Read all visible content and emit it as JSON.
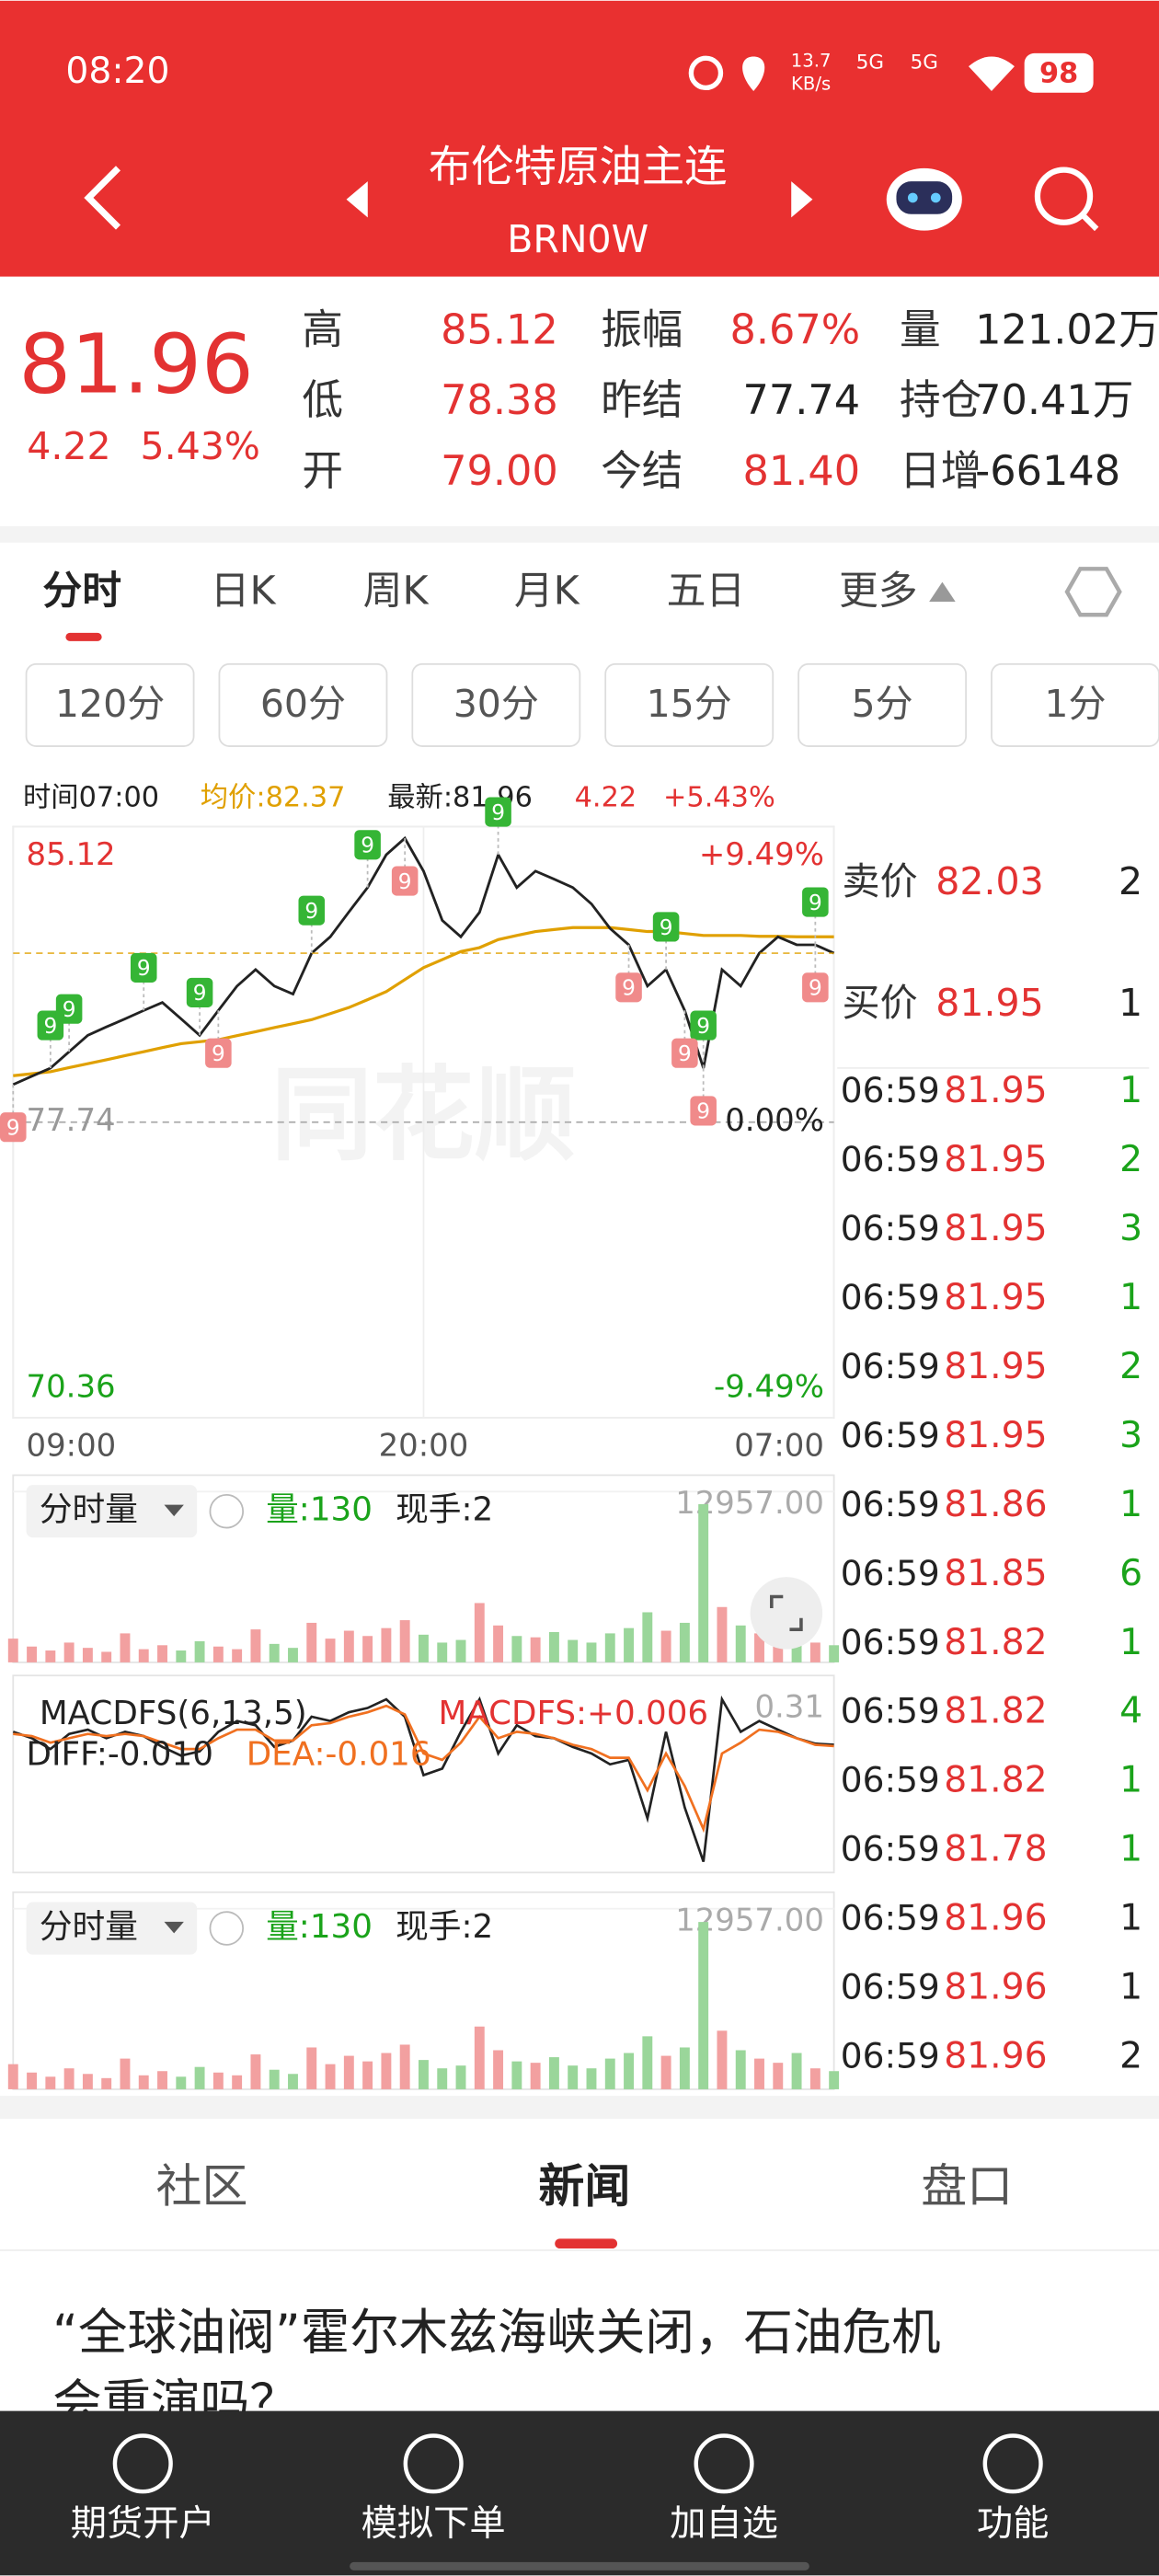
{
  "status_bar": {
    "time": "08:20",
    "speed": "13.7",
    "speed_unit": "KB/s",
    "net1": "5G",
    "net2": "5G",
    "battery": "98"
  },
  "header": {
    "title": "布伦特原油主连",
    "code": "BRN0W"
  },
  "quote": {
    "price": "81.96",
    "change": "4.22",
    "change_pct": "5.43%",
    "stats": [
      [
        {
          "label": "高",
          "value": "85.12"
        },
        {
          "label": "振幅",
          "value": "8.67%"
        },
        {
          "label": "量",
          "value": "121.02万"
        }
      ],
      [
        {
          "label": "低",
          "value": "78.38"
        },
        {
          "label": "昨结",
          "value": "77.74"
        },
        {
          "label": "持仓",
          "value": "70.41万"
        }
      ],
      [
        {
          "label": "开",
          "value": "79.00"
        },
        {
          "label": "今结",
          "value": "81.40"
        },
        {
          "label": "日增",
          "value": "-66148"
        }
      ]
    ]
  },
  "tabs": [
    "分时",
    "日K",
    "周K",
    "月K",
    "五日",
    "更多"
  ],
  "intervals": [
    "120分",
    "60分",
    "30分",
    "15分",
    "5分",
    "1分"
  ],
  "info": {
    "time": "时间07:00",
    "avg": "均价:82.37",
    "latest": "最新:81.96",
    "change": "4.22",
    "change_pct": "+5.43%"
  },
  "watermark": "同花顺",
  "chart_data": {
    "type": "line",
    "xlim": [
      0,
      1320
    ],
    "xticks": [
      {
        "value": 0,
        "label": "09:00"
      },
      {
        "value": 660,
        "label": "20:00"
      },
      {
        "value": 1320,
        "label": "07:00"
      }
    ],
    "ylim": [
      70.36,
      85.12
    ],
    "yticks": [
      85.12,
      77.74,
      70.36
    ],
    "y2lim": [
      -9.49,
      9.49
    ],
    "y2ticks": [
      {
        "value": 9.49,
        "label": "+9.49%"
      },
      {
        "value": 0,
        "label": "0.00%"
      },
      {
        "value": -9.49,
        "label": "-9.49%"
      }
    ],
    "x": [
      0,
      30,
      60,
      90,
      120,
      150,
      180,
      210,
      240,
      270,
      300,
      330,
      360,
      390,
      420,
      450,
      480,
      510,
      540,
      570,
      600,
      630,
      660,
      690,
      720,
      750,
      780,
      810,
      840,
      870,
      900,
      930,
      960,
      990,
      1020,
      1050,
      1080,
      1110,
      1140,
      1170,
      1200,
      1230,
      1260,
      1290,
      1320
    ],
    "series": [
      {
        "color": "#222222",
        "values": [
          78.68,
          78.89,
          79.09,
          79.5,
          79.91,
          80.12,
          80.32,
          80.53,
          80.73,
          80.32,
          79.91,
          80.53,
          81.14,
          81.55,
          81.14,
          80.94,
          81.96,
          82.37,
          82.99,
          83.6,
          84.42,
          84.83,
          84.01,
          82.78,
          82.37,
          82.98,
          84.42,
          83.6,
          84.01,
          83.81,
          83.6,
          83.19,
          82.58,
          82.17,
          81.14,
          81.55,
          80.53,
          79.09,
          81.55,
          81.14,
          81.96,
          82.37,
          82.17,
          82.17,
          81.96
        ]
      },
      {
        "color": "#e0a000",
        "values": [
          78.9,
          78.95,
          79.0,
          79.1,
          79.2,
          79.3,
          79.4,
          79.5,
          79.6,
          79.7,
          79.75,
          79.8,
          79.9,
          80.0,
          80.1,
          80.2,
          80.3,
          80.45,
          80.6,
          80.8,
          81.0,
          81.3,
          81.6,
          81.8,
          82.0,
          82.1,
          82.3,
          82.4,
          82.5,
          82.55,
          82.6,
          82.6,
          82.6,
          82.55,
          82.5,
          82.5,
          82.45,
          82.4,
          82.4,
          82.4,
          82.38,
          82.38,
          82.37,
          82.37,
          82.37
        ]
      }
    ],
    "signals": [
      {
        "x": 60,
        "label": "9",
        "color": "#35b535"
      },
      {
        "x": 90,
        "label": "9",
        "color": "#35b535"
      },
      {
        "x": 210,
        "label": "9",
        "color": "#35b535"
      },
      {
        "x": 300,
        "label": "9",
        "color": "#35b535"
      },
      {
        "x": 480,
        "label": "9",
        "color": "#35b535"
      },
      {
        "x": 570,
        "label": "9",
        "color": "#35b535"
      },
      {
        "x": 780,
        "label": "9",
        "color": "#35b535"
      },
      {
        "x": 1050,
        "label": "9",
        "color": "#35b535"
      },
      {
        "x": 1110,
        "label": "9",
        "color": "#35b535"
      },
      {
        "x": 1290,
        "label": "9",
        "color": "#35b535"
      },
      {
        "x": 0,
        "label": "9",
        "color": "#f08a8a"
      },
      {
        "x": 330,
        "label": "9",
        "color": "#f08a8a"
      },
      {
        "x": 630,
        "label": "9",
        "color": "#f08a8a"
      },
      {
        "x": 990,
        "label": "9",
        "color": "#f08a8a"
      },
      {
        "x": 1080,
        "label": "9",
        "color": "#f08a8a"
      },
      {
        "x": 1110,
        "label": "9",
        "color": "#f08a8a"
      },
      {
        "x": 1290,
        "label": "9",
        "color": "#f08a8a"
      }
    ]
  },
  "volume": {
    "type": "bar",
    "title": "分时量",
    "amount": "量:130",
    "hand": "现手:2",
    "ylim": [
      0,
      12957
    ],
    "yticks": [
      {
        "value": 12957,
        "label": "12957.00"
      }
    ],
    "colors": [
      "#f2a0a0",
      "#9ad69a"
    ],
    "values": [
      1800,
      1200,
      900,
      1500,
      1100,
      800,
      2200,
      1000,
      1300,
      900,
      1600,
      1200,
      1000,
      2500,
      1400,
      1100,
      3000,
      1800,
      2400,
      2000,
      2600,
      3200,
      2100,
      1500,
      1700,
      4500,
      2800,
      2000,
      1900,
      2300,
      1700,
      1500,
      2200,
      2600,
      3800,
      2400,
      3000,
      12000,
      4200,
      2800,
      2200,
      1900,
      2600,
      1500,
      1300
    ]
  },
  "macd": {
    "type": "line",
    "title": "MACDFS(6,13,5)",
    "macd": "MACDFS:+0.006",
    "diff": "DIFF:-0.010",
    "dea": "DEA:-0.016",
    "ylim": [
      -0.6,
      0.31
    ],
    "yticks": [
      0.31
    ],
    "series": [
      {
        "color": "#222222",
        "values": [
          0.05,
          0.02,
          -0.03,
          0.04,
          0.06,
          0.02,
          0.05,
          0.03,
          -0.02,
          -0.06,
          -0.04,
          0.05,
          0.1,
          0.08,
          -0.02,
          0.01,
          0.12,
          0.1,
          0.14,
          0.16,
          0.2,
          0.12,
          -0.15,
          -0.12,
          0.05,
          0.2,
          -0.05,
          0.08,
          0.03,
          0.02,
          -0.02,
          -0.05,
          -0.1,
          -0.08,
          -0.35,
          0.05,
          -0.3,
          -0.55,
          0.2,
          0.05,
          0.1,
          0.06,
          0.02,
          -0.005,
          -0.01
        ]
      },
      {
        "color": "#f07020",
        "values": [
          0.04,
          0.03,
          0.0,
          0.02,
          0.04,
          0.03,
          0.04,
          0.03,
          0.0,
          -0.03,
          -0.03,
          0.02,
          0.06,
          0.06,
          0.01,
          0.01,
          0.08,
          0.09,
          0.12,
          0.14,
          0.17,
          0.13,
          -0.05,
          -0.08,
          0.0,
          0.12,
          0.02,
          0.05,
          0.04,
          0.02,
          -0.01,
          -0.03,
          -0.07,
          -0.07,
          -0.22,
          -0.05,
          -0.2,
          -0.4,
          -0.05,
          0.0,
          0.06,
          0.05,
          0.02,
          -0.01,
          -0.016
        ]
      }
    ]
  },
  "order_book": {
    "sell": {
      "label": "卖价",
      "price": "82.03",
      "volume": "2"
    },
    "buy": {
      "label": "买价",
      "price": "81.95",
      "volume": "1"
    }
  },
  "trades": [
    [
      "06:59",
      "81.95",
      "1"
    ],
    [
      "06:59",
      "81.95",
      "2"
    ],
    [
      "06:59",
      "81.95",
      "3"
    ],
    [
      "06:59",
      "81.95",
      "1"
    ],
    [
      "06:59",
      "81.95",
      "2"
    ],
    [
      "06:59",
      "81.95",
      "3"
    ],
    [
      "06:59",
      "81.86",
      "1"
    ],
    [
      "06:59",
      "81.85",
      "6"
    ],
    [
      "06:59",
      "81.82",
      "1"
    ],
    [
      "06:59",
      "81.82",
      "4"
    ],
    [
      "06:59",
      "81.82",
      "1"
    ],
    [
      "06:59",
      "81.78",
      "1"
    ],
    [
      "06:59",
      "81.96",
      "1"
    ],
    [
      "06:59",
      "81.96",
      "1"
    ],
    [
      "06:59",
      "81.96",
      "2"
    ]
  ],
  "bottom_tabs": [
    "社区",
    "新闻",
    "盘口"
  ],
  "headline": [
    "“全球油阀”霍尔木兹海峡关闭，石油危机",
    "会重演吗？"
  ],
  "nav": [
    "期货开户",
    "模拟下单",
    "加自选",
    "功能"
  ]
}
